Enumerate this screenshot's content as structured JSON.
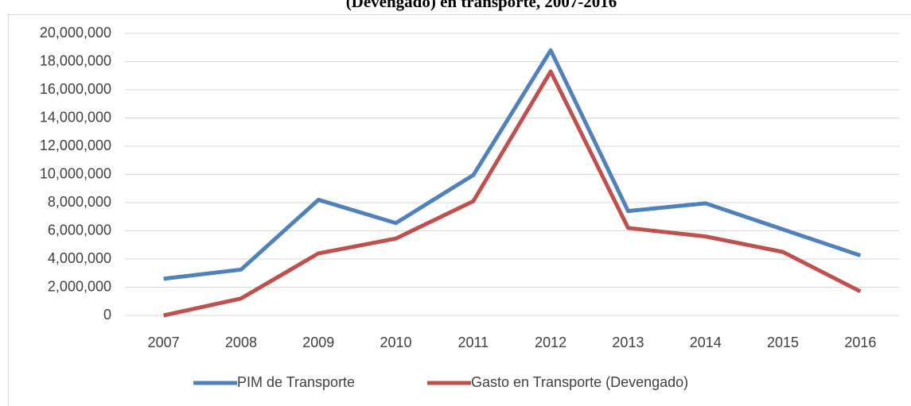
{
  "chart_data": {
    "type": "line",
    "title": "(Devengado) en transporte, 2007-2016",
    "categories": [
      "2007",
      "2008",
      "2009",
      "2010",
      "2011",
      "2012",
      "2013",
      "2014",
      "2015",
      "2016"
    ],
    "series": [
      {
        "name": "PIM de Transporte",
        "color": "#4f81bd",
        "values": [
          2600000,
          3250000,
          8200000,
          6550000,
          9950000,
          18800000,
          7400000,
          7950000,
          6100000,
          4250000
        ]
      },
      {
        "name": "Gasto en Transporte (Devengado)",
        "color": "#c0504d",
        "values": [
          0,
          1200000,
          4400000,
          5450000,
          8100000,
          17300000,
          6200000,
          5600000,
          4500000,
          1700000
        ]
      }
    ],
    "ylim": [
      0,
      20000000
    ],
    "yticks": [
      0,
      {
        "value": 2000000,
        "label": "2,000,000"
      },
      {
        "value": 4000000,
        "label": "4,000,000"
      },
      {
        "value": 6000000,
        "label": "6,000,000"
      },
      {
        "value": 8000000,
        "label": "8,000,000"
      },
      {
        "value": 10000000,
        "label": "10,000,000"
      },
      {
        "value": 12000000,
        "label": "12,000,000"
      },
      {
        "value": 14000000,
        "label": "14,000,000"
      },
      {
        "value": 16000000,
        "label": "16,000,000"
      },
      {
        "value": 18000000,
        "label": "18,000,000"
      },
      {
        "value": 20000000,
        "label": "20,000,000"
      }
    ],
    "grid": true,
    "legend": "bottom"
  }
}
